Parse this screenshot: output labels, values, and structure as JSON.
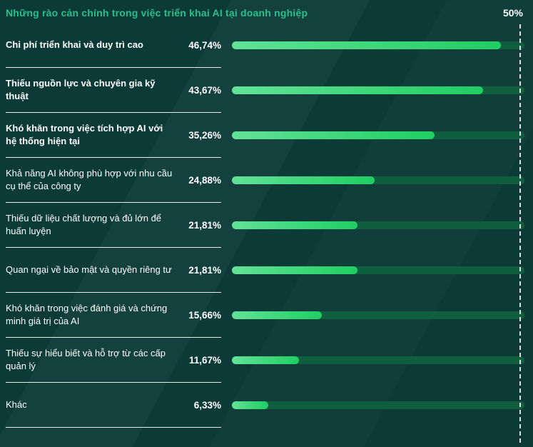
{
  "title": "Những rào cản chính trong việc triển khai AI tại doanh nghiệp",
  "axis_max_label": "50%",
  "colors": {
    "background": "#0c3a37",
    "title": "#2bc08a",
    "bar_track": "#0f5f3e",
    "bar_fill_start": "#62e297",
    "bar_fill_end": "#1fce62",
    "text": "#ffffff",
    "separator": "#ffffff",
    "reference_line": "#ffffff"
  },
  "chart_data": {
    "type": "bar",
    "orientation": "horizontal",
    "title": "Những rào cản chính trong việc triển khai AI tại doanh nghiệp",
    "categories": [
      "Chi phí triển khai và duy trì cao",
      "Thiếu nguồn lực và chuyên gia kỹ thuật",
      "Khó khăn trong việc tích hợp AI với hệ thống hiện tại",
      "Khả năng AI không phù hợp với nhu cầu cụ thể của công ty",
      "Thiếu dữ liệu chất lượng và đủ lớn để huấn luyện",
      "Quan ngại về bảo mật và quyền riêng tư",
      "Khó khăn trong việc đánh giá và chứng minh giá trị của AI",
      "Thiếu sự hiểu biết và hỗ trợ từ các cấp quản lý",
      "Khác"
    ],
    "values": [
      46.74,
      43.67,
      35.26,
      24.88,
      21.81,
      21.81,
      15.66,
      11.67,
      6.33
    ],
    "value_labels": [
      "46,74%",
      "43,67%",
      "35,26%",
      "24,88%",
      "21,81%",
      "21,81%",
      "15,66%",
      "11,67%",
      "6,33%"
    ],
    "xlabel": "",
    "ylabel": "",
    "xlim": [
      0,
      50
    ],
    "grid": false,
    "legend": false,
    "reference_line": {
      "value": 50,
      "label": "50%",
      "style": "dashed"
    }
  },
  "rows": [
    {
      "label": "Chi phí triển khai và duy trì cao",
      "value": 46.74,
      "value_label": "46,74%",
      "bold": true
    },
    {
      "label": "Thiếu nguồn lực và chuyên gia kỹ thuật",
      "value": 43.67,
      "value_label": "43,67%",
      "bold": true
    },
    {
      "label": "Khó khăn trong việc tích hợp AI với hệ thống hiện tại",
      "value": 35.26,
      "value_label": "35,26%",
      "bold": true
    },
    {
      "label": "Khả năng AI không phù hợp với nhu cầu cụ thể của công ty",
      "value": 24.88,
      "value_label": "24,88%",
      "bold": false
    },
    {
      "label": "Thiếu dữ liệu chất lượng và đủ lớn để huấn luyện",
      "value": 21.81,
      "value_label": "21,81%",
      "bold": false
    },
    {
      "label": "Quan ngại về bảo mật và quyền riêng tư",
      "value": 21.81,
      "value_label": "21,81%",
      "bold": false
    },
    {
      "label": "Khó khăn trong việc đánh giá và chứng minh giá trị của AI",
      "value": 15.66,
      "value_label": "15,66%",
      "bold": false
    },
    {
      "label": "Thiếu sự hiểu biết và hỗ trợ từ các cấp quản lý",
      "value": 11.67,
      "value_label": "11,67%",
      "bold": false
    },
    {
      "label": "Khác",
      "value": 6.33,
      "value_label": "6,33%",
      "bold": false
    }
  ]
}
